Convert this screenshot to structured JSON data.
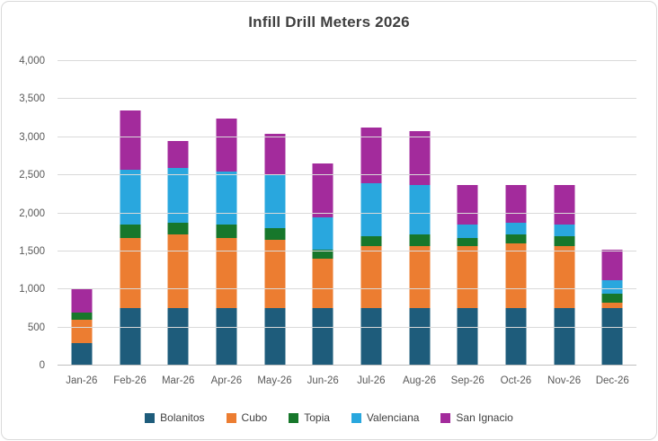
{
  "chart": {
    "title": "Infill Drill Meters 2026"
  },
  "chart_data": {
    "type": "bar",
    "stacked": true,
    "title": "Infill Drill Meters 2026",
    "xlabel": "",
    "ylabel": "",
    "grid": true,
    "legend_position": "bottom",
    "ylim": [
      0,
      4000
    ],
    "ytick_step": 500,
    "ytick_labels": [
      "0",
      "500",
      "1,000",
      "1,500",
      "2,000",
      "2,500",
      "3,000",
      "3,500",
      "4,000"
    ],
    "categories": [
      "Jan-26",
      "Feb-26",
      "Mar-26",
      "Apr-26",
      "May-26",
      "Jun-26",
      "Jul-26",
      "Aug-26",
      "Sep-26",
      "Oct-26",
      "Nov-26",
      "Dec-26"
    ],
    "series": [
      {
        "name": "Bolanitos",
        "color": "#1E5C7B",
        "values": [
          300,
          750,
          750,
          750,
          750,
          750,
          750,
          750,
          750,
          750,
          750,
          750
        ]
      },
      {
        "name": "Cubo",
        "color": "#EC7D31",
        "values": [
          300,
          925,
          975,
          925,
          900,
          650,
          825,
          825,
          825,
          850,
          825,
          75
        ]
      },
      {
        "name": "Topia",
        "color": "#17772B",
        "values": [
          100,
          175,
          150,
          175,
          150,
          125,
          125,
          150,
          100,
          125,
          125,
          125
        ]
      },
      {
        "name": "Valenciana",
        "color": "#29A7DE",
        "values": [
          0,
          725,
          725,
          700,
          700,
          425,
          700,
          650,
          175,
          150,
          150,
          175
        ]
      },
      {
        "name": "San Ignacio",
        "color": "#A32B9C",
        "values": [
          300,
          775,
          350,
          700,
          550,
          700,
          725,
          700,
          525,
          500,
          525,
          400
        ]
      }
    ],
    "totals": [
      1000,
      3350,
      2950,
      3250,
      3050,
      2650,
      3125,
      3075,
      2375,
      2375,
      2375,
      1525
    ],
    "colors": {
      "gridline": "#D9D9D9",
      "axis": "#BFBFBF",
      "tick_text": "#595959",
      "title_text": "#3F3F3F",
      "legend_text": "#404040",
      "frame_border": "#D9D9D9"
    }
  }
}
